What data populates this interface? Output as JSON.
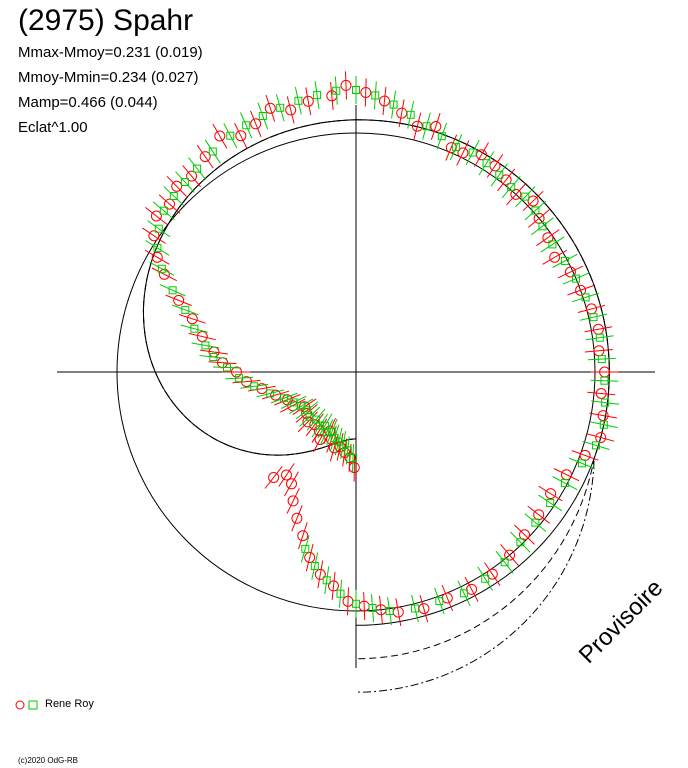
{
  "header": {
    "title": "(2975) Spahr",
    "stats": [
      "Mmax-Mmoy=0.231 (0.019)",
      "Mmoy-Mmin=0.234 (0.027)",
      "Mamp=0.466 (0.044)",
      "Eclat^1.00"
    ]
  },
  "legend": {
    "label": "Rene Roy"
  },
  "watermark": "Provisoire",
  "footer": {
    "copyright": "(c)2020 OdG-RB"
  },
  "colors": {
    "axis": "#000000",
    "circle_marker": "#ff0000",
    "square_marker": "#00cc00"
  },
  "chart_data": {
    "type": "scatter",
    "subtype": "polar lightcurve",
    "grid": false,
    "legend_position": "bottom-left",
    "series": [
      {
        "marker": "circle",
        "color": "#ff0000",
        "points_deg_r": [
          [
            -89,
            0.4
          ],
          [
            -86,
            0.36
          ],
          [
            -82,
            0.34
          ],
          [
            -78,
            0.32
          ],
          [
            -74,
            0.33
          ],
          [
            -70,
            0.3
          ],
          [
            -66,
            0.27
          ],
          [
            -62,
            0.32
          ],
          [
            -58,
            0.29
          ],
          [
            -52,
            0.28
          ],
          [
            -46,
            0.29
          ],
          [
            -40,
            0.27
          ],
          [
            -34,
            0.26
          ],
          [
            -28,
            0.3
          ],
          [
            -22,
            0.31
          ],
          [
            -16,
            0.35
          ],
          [
            -10,
            0.4
          ],
          [
            -5,
            0.46
          ],
          [
            0,
            0.5
          ],
          [
            4,
            0.56
          ],
          [
            8,
            0.6
          ],
          [
            13,
            0.66
          ],
          [
            18,
            0.72
          ],
          [
            22,
            0.8
          ],
          [
            27,
            0.9
          ],
          [
            30,
            0.96
          ],
          [
            34,
            1.02
          ],
          [
            38,
            1.06
          ],
          [
            42,
            1.05
          ],
          [
            46,
            1.08
          ],
          [
            50,
            1.07
          ],
          [
            55,
            1.1
          ],
          [
            60,
            1.14
          ],
          [
            64,
            1.1
          ],
          [
            68,
            1.12
          ],
          [
            72,
            1.16
          ],
          [
            76,
            1.13
          ],
          [
            80,
            1.15
          ],
          [
            85,
            1.16
          ],
          [
            88,
            1.2
          ],
          [
            92,
            1.17
          ],
          [
            96,
            1.14
          ],
          [
            100,
            1.1
          ],
          [
            104,
            1.06
          ],
          [
            108,
            1.08
          ],
          [
            113,
            1.02
          ],
          [
            116,
            1.02
          ],
          [
            120,
            1.05
          ],
          [
            124,
            1.04
          ],
          [
            128,
            1.02
          ],
          [
            132,
            1.0
          ],
          [
            136,
            1.03
          ],
          [
            140,
            1.0
          ],
          [
            145,
            0.98
          ],
          [
            150,
            0.96
          ],
          [
            155,
            0.99
          ],
          [
            160,
            1.0
          ],
          [
            165,
            1.02
          ],
          [
            170,
            1.03
          ],
          [
            175,
            1.02
          ],
          [
            180,
            1.04
          ],
          [
            185,
            1.03
          ],
          [
            190,
            1.05
          ],
          [
            195,
            1.06
          ],
          [
            200,
            1.02
          ],
          [
            206,
            0.98
          ],
          [
            212,
            0.96
          ],
          [
            218,
            0.97
          ],
          [
            224,
            0.98
          ],
          [
            230,
            1.0
          ],
          [
            236,
            1.02
          ],
          [
            242,
            1.03
          ],
          [
            248,
            1.02
          ],
          [
            254,
            1.03
          ],
          [
            260,
            1.02
          ],
          [
            264,
            1.0
          ],
          [
            268,
            0.98
          ],
          [
            272,
            0.96
          ],
          [
            276,
            0.9
          ],
          [
            280,
            0.86
          ],
          [
            284,
            0.8
          ],
          [
            288,
            0.72
          ],
          [
            292,
            0.66
          ],
          [
            296,
            0.6
          ],
          [
            300,
            0.54
          ],
          [
            304,
            0.52
          ],
          [
            308,
            0.56
          ]
        ]
      },
      {
        "marker": "square",
        "color": "#00cc00",
        "points_deg_r": [
          [
            -88,
            0.36
          ],
          [
            -84,
            0.33
          ],
          [
            -80,
            0.31
          ],
          [
            -76,
            0.3
          ],
          [
            -72,
            0.29
          ],
          [
            -68,
            0.27
          ],
          [
            -64,
            0.28
          ],
          [
            -60,
            0.26
          ],
          [
            -56,
            0.27
          ],
          [
            -50,
            0.26
          ],
          [
            -44,
            0.27
          ],
          [
            -38,
            0.26
          ],
          [
            -32,
            0.27
          ],
          [
            -26,
            0.29
          ],
          [
            -20,
            0.32
          ],
          [
            -14,
            0.37
          ],
          [
            -8,
            0.43
          ],
          [
            -3,
            0.49
          ],
          [
            2,
            0.54
          ],
          [
            6,
            0.6
          ],
          [
            10,
            0.64
          ],
          [
            15,
            0.7
          ],
          [
            20,
            0.76
          ],
          [
            24,
            0.84
          ],
          [
            28,
            0.92
          ],
          [
            32,
            0.98
          ],
          [
            36,
            1.02
          ],
          [
            40,
            1.05
          ],
          [
            44,
            1.06
          ],
          [
            48,
            1.07
          ],
          [
            52,
            1.08
          ],
          [
            57,
            1.1
          ],
          [
            62,
            1.12
          ],
          [
            66,
            1.13
          ],
          [
            70,
            1.14
          ],
          [
            74,
            1.15
          ],
          [
            78,
            1.16
          ],
          [
            82,
            1.17
          ],
          [
            86,
            1.18
          ],
          [
            90,
            1.18
          ],
          [
            94,
            1.16
          ],
          [
            98,
            1.13
          ],
          [
            102,
            1.1
          ],
          [
            106,
            1.07
          ],
          [
            110,
            1.05
          ],
          [
            114,
            1.03
          ],
          [
            118,
            1.04
          ],
          [
            122,
            1.03
          ],
          [
            126,
            1.02
          ],
          [
            130,
            1.01
          ],
          [
            134,
            1.02
          ],
          [
            138,
            1.01
          ],
          [
            142,
            0.99
          ],
          [
            147,
            0.98
          ],
          [
            152,
            0.99
          ],
          [
            157,
            1.0
          ],
          [
            162,
            1.01
          ],
          [
            167,
            1.02
          ],
          [
            172,
            1.03
          ],
          [
            177,
            1.03
          ],
          [
            182,
            1.04
          ],
          [
            187,
            1.05
          ],
          [
            192,
            1.06
          ],
          [
            197,
            1.05
          ],
          [
            202,
            1.02
          ],
          [
            208,
            0.99
          ],
          [
            214,
            0.98
          ],
          [
            220,
            0.98
          ],
          [
            226,
            0.99
          ],
          [
            232,
            1.01
          ],
          [
            238,
            1.02
          ],
          [
            244,
            1.03
          ],
          [
            250,
            1.02
          ],
          [
            256,
            1.02
          ],
          [
            262,
            1.01
          ],
          [
            266,
            0.99
          ],
          [
            270,
            0.97
          ],
          [
            274,
            0.93
          ],
          [
            278,
            0.88
          ],
          [
            282,
            0.83
          ],
          [
            286,
            0.77
          ]
        ]
      }
    ],
    "fit_curves": [
      {
        "style": "solid",
        "amplitude_scale": 1.0
      },
      {
        "style": "dashed",
        "amplitude_scale": 1.06
      },
      {
        "style": "dash-dot",
        "amplitude_scale": 1.12
      }
    ]
  }
}
